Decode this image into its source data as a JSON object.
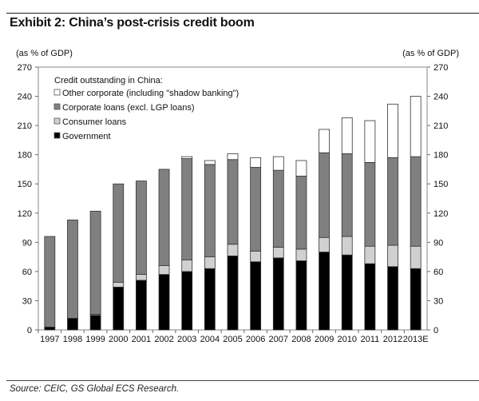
{
  "title": "Exhibit 2: China’s post-crisis credit boom",
  "source": "Source: CEIC, GS Global ECS Research.",
  "chart_data": {
    "type": "bar",
    "stacked": true,
    "left_axis_label": "(as % of GDP)",
    "right_axis_label": "(as % of GDP)",
    "ylim": [
      0,
      270
    ],
    "yticks": [
      0,
      30,
      60,
      90,
      120,
      150,
      180,
      210,
      240,
      270
    ],
    "grid": false,
    "legend_title": "Credit outstanding in China:",
    "legend_placement": "top-left",
    "categories": [
      "1997",
      "1998",
      "1999",
      "2000",
      "2001",
      "2002",
      "2003",
      "2004",
      "2005",
      "2006",
      "2007",
      "2008",
      "2009",
      "2010",
      "2011",
      "2012",
      "2013E"
    ],
    "series": [
      {
        "name": "Government",
        "color": "#000000",
        "values": [
          3,
          12,
          15,
          44,
          51,
          57,
          60,
          63,
          76,
          70,
          74,
          71,
          80,
          77,
          68,
          65,
          63
        ]
      },
      {
        "name": "Consumer loans",
        "color": "#d0d0d0",
        "values": [
          0,
          0,
          1,
          5,
          6,
          9,
          12,
          12,
          12,
          11,
          11,
          12,
          15,
          19,
          18,
          22,
          23
        ]
      },
      {
        "name": "Corporate loans (excl. LGP loans)",
        "color": "#808080",
        "values": [
          93,
          101,
          106,
          101,
          96,
          99,
          104,
          95,
          87,
          86,
          79,
          75,
          87,
          85,
          86,
          90,
          92
        ]
      },
      {
        "name": "Other corporate (including \"shadow banking\")",
        "color": "#ffffff",
        "values": [
          0,
          0,
          0,
          0,
          0,
          0,
          2,
          4,
          6,
          10,
          14,
          16,
          24,
          37,
          43,
          55,
          62
        ]
      }
    ],
    "legend_order": [
      3,
      2,
      1,
      0
    ]
  }
}
